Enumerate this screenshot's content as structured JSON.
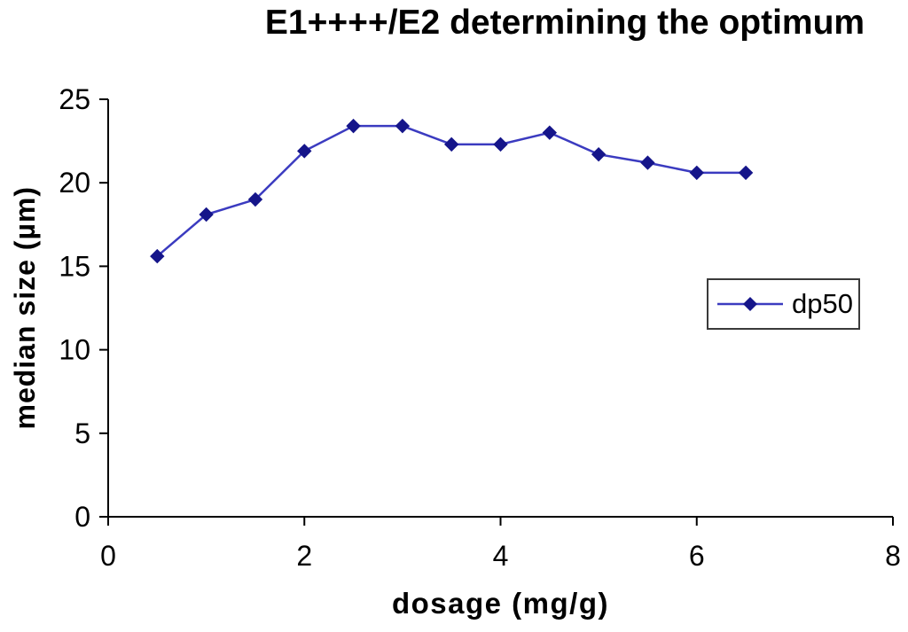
{
  "chart_data": {
    "type": "line",
    "title": "E1++++/E2 determining the optimum",
    "xlabel": "dosage (mg/g)",
    "ylabel": "median size (µm)",
    "xlim": [
      0,
      8
    ],
    "ylim": [
      0,
      25
    ],
    "xticks": [
      0,
      2,
      4,
      6,
      8
    ],
    "yticks": [
      0,
      5,
      10,
      15,
      20,
      25
    ],
    "grid": false,
    "background_color": "#FFFFFF",
    "axis_color": "#000000",
    "legend_position": "middle-right",
    "legend_border_color": "#3A3A3A",
    "series": [
      {
        "name": "dp50",
        "marker": "diamond",
        "marker_color": "#15158A",
        "line_color": "#3B3BC0",
        "x": [
          0.5,
          1.0,
          1.5,
          2.0,
          2.5,
          3.0,
          3.5,
          4.0,
          4.5,
          5.0,
          5.5,
          6.0,
          6.5
        ],
        "y": [
          15.6,
          18.1,
          19.0,
          21.9,
          23.4,
          23.4,
          22.3,
          22.3,
          23.0,
          21.7,
          21.2,
          20.6,
          20.6
        ]
      }
    ]
  }
}
